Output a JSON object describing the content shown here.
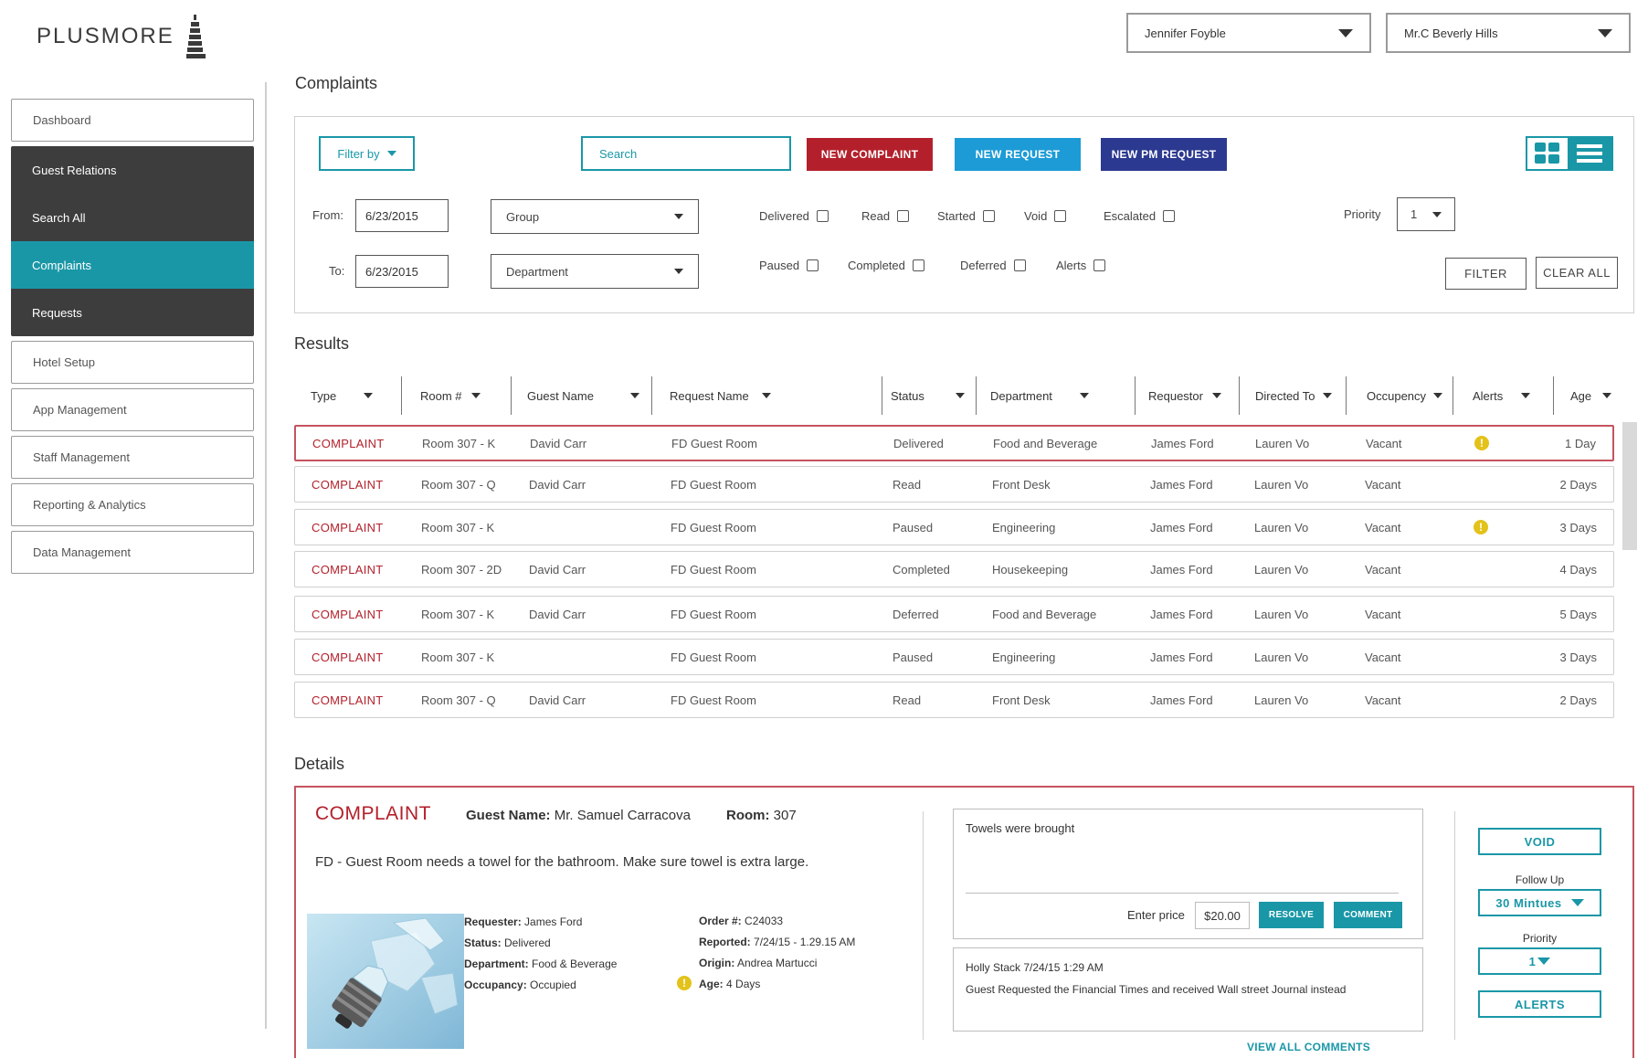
{
  "brand": {
    "name": "PLUSMORE"
  },
  "header": {
    "user_select": "Jennifer Foyble",
    "hotel_select": "Mr.C Beverly Hills"
  },
  "sidebar": {
    "items": [
      {
        "label": "Dashboard"
      },
      {
        "label": "Guest Relations"
      },
      {
        "label": "Search All"
      },
      {
        "label": "Complaints"
      },
      {
        "label": "Requests"
      },
      {
        "label": "Hotel Setup"
      },
      {
        "label": "App Management"
      },
      {
        "label": "Staff Management"
      },
      {
        "label": "Reporting & Analytics"
      },
      {
        "label": "Data Management"
      }
    ]
  },
  "page": {
    "title": "Complaints",
    "results_title": "Results",
    "details_title": "Details"
  },
  "filters": {
    "filter_by": "Filter by",
    "search_placeholder": "Search",
    "new_complaint": "NEW COMPLAINT",
    "new_request": "NEW REQUEST",
    "new_pm_request": "NEW PM REQUEST",
    "from_label": "From:",
    "to_label": "To:",
    "from_date": "6/23/2015",
    "to_date": "6/23/2015",
    "group": "Group",
    "department": "Department",
    "checkboxes_row1": [
      "Delivered",
      "Read",
      "Started",
      "Void",
      "Escalated"
    ],
    "checkboxes_row2": [
      "Paused",
      "Completed",
      "Deferred",
      "Alerts"
    ],
    "priority_label": "Priority",
    "priority_value": "1",
    "filter_button": "FILTER",
    "clear_all_button": "CLEAR ALL",
    "colors": {
      "teal": "#1a97a7",
      "complaint_red": "#b3202b",
      "request_blue": "#1d9bd6",
      "pm_navy": "#2b3990"
    }
  },
  "table": {
    "headers": [
      "Type",
      "Room #",
      "Guest Name",
      "Request Name",
      "Status",
      "Department",
      "Requestor",
      "Directed To",
      "Occupency",
      "Alerts",
      "Age"
    ],
    "rows": [
      {
        "type": "COMPLAINT",
        "room": "Room 307 - K",
        "guest": "David Carr",
        "request": "FD Guest Room",
        "status": "Delivered",
        "department": "Food and Beverage",
        "requestor": "James Ford",
        "directed": "Lauren Vo",
        "occupancy": "Vacant",
        "alert": "!",
        "age": "1 Day"
      },
      {
        "type": "COMPLAINT",
        "room": "Room 307 - Q",
        "guest": "David Carr",
        "request": "FD Guest Room",
        "status": "Read",
        "department": "Front Desk",
        "requestor": "James Ford",
        "directed": "Lauren Vo",
        "occupancy": "Vacant",
        "alert": "",
        "age": "2 Days"
      },
      {
        "type": "COMPLAINT",
        "room": "Room 307 - K",
        "guest": "",
        "request": "FD Guest Room",
        "status": "Paused",
        "department": "Engineering",
        "requestor": "James Ford",
        "directed": "Lauren Vo",
        "occupancy": "Vacant",
        "alert": "!",
        "age": "3 Days"
      },
      {
        "type": "COMPLAINT",
        "room": "Room 307 - 2D",
        "guest": "David Carr",
        "request": "FD Guest Room",
        "status": "Completed",
        "department": "Housekeeping",
        "requestor": "James Ford",
        "directed": "Lauren Vo",
        "occupancy": "Vacant",
        "alert": "",
        "age": "4 Days"
      },
      {
        "type": "COMPLAINT",
        "room": "Room 307 - K",
        "guest": "David Carr",
        "request": "FD Guest Room",
        "status": "Deferred",
        "department": "Food and Beverage",
        "requestor": "James Ford",
        "directed": "Lauren Vo",
        "occupancy": "Vacant",
        "alert": "",
        "age": "5 Days"
      },
      {
        "type": "COMPLAINT",
        "room": "Room 307 - K",
        "guest": "",
        "request": "FD Guest Room",
        "status": "Paused",
        "department": "Engineering",
        "requestor": "James Ford",
        "directed": "Lauren Vo",
        "occupancy": "Vacant",
        "alert": "",
        "age": "3 Days"
      },
      {
        "type": "COMPLAINT",
        "room": "Room 307 - Q",
        "guest": "David Carr",
        "request": "FD Guest Room",
        "status": "Read",
        "department": "Front Desk",
        "requestor": "James Ford",
        "directed": "Lauren Vo",
        "occupancy": "Vacant",
        "alert": "",
        "age": "2 Days"
      }
    ]
  },
  "details": {
    "type": "COMPLAINT",
    "guest_name_label": "Guest Name:",
    "guest_name": "Mr. Samuel Carracova",
    "room_label": "Room:",
    "room": "307",
    "description": "FD - Guest Room needs a towel for the bathroom.  Make sure towel is extra large.",
    "requester_label": "Requester:",
    "requester": "James Ford",
    "status_label": "Status:",
    "status": "Delivered",
    "department_label": "Department:",
    "department": "Food & Beverage",
    "occupancy_label": "Occupancy:",
    "occupancy": "Occupied",
    "order_label": "Order #:",
    "order": "C24033",
    "reported_label": "Reported:",
    "reported": "7/24/15 - 1.29.15 AM",
    "origin_label": "Origin:",
    "origin": "Andrea Martucci",
    "age_label": "Age:",
    "age": "4 Days",
    "alert_icon": "!",
    "comment_text": "Towels were brought",
    "enter_price_label": "Enter price",
    "price": "$20.00",
    "resolve_button": "RESOLVE",
    "comment_button": "COMMENT",
    "comment_author": "Holly Stack 7/24/15 1:29 AM",
    "comment_body": "Guest Requested the Financial Times and received Wall street Journal instead",
    "view_all_comments": "VIEW ALL COMMENTS",
    "void_button": "VOID",
    "follow_up_label": "Follow Up",
    "follow_up_value": "30 Mintues",
    "priority_label": "Priority",
    "priority_value": "1",
    "alerts_button": "ALERTS"
  }
}
